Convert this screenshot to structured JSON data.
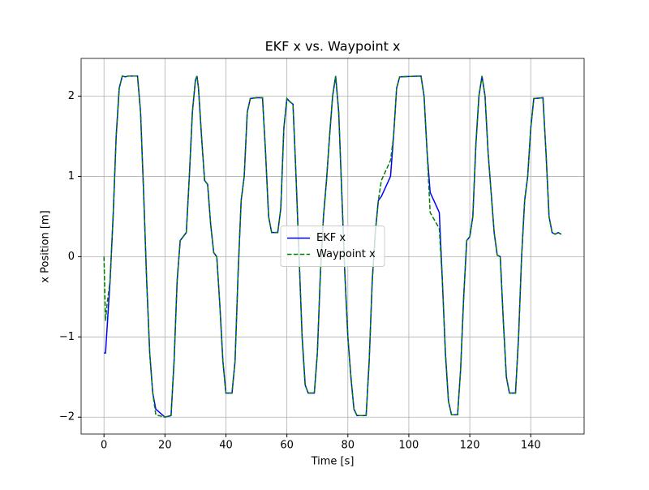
{
  "chart_data": {
    "type": "line",
    "title": "EKF x vs. Waypoint x",
    "x_label": "Time [s]",
    "y_label": "x Position [m]",
    "x": [
      0,
      0.5,
      1,
      2,
      3,
      4,
      5,
      6,
      7,
      8,
      11,
      12,
      13,
      14,
      15,
      16,
      17,
      20,
      22,
      23,
      24,
      25,
      26,
      27,
      28,
      29,
      30,
      30.5,
      31,
      32,
      33,
      34,
      35,
      36,
      37,
      38,
      39,
      40,
      42,
      43,
      44,
      45,
      46,
      47,
      48,
      50,
      52,
      53,
      54,
      55,
      57,
      58,
      59,
      60,
      61,
      62,
      63,
      64,
      65,
      66,
      67,
      69,
      70,
      71,
      72,
      73,
      74,
      75,
      76,
      77,
      78,
      79,
      80,
      81,
      82,
      83,
      86,
      87,
      88,
      89,
      90,
      91,
      94,
      95,
      96,
      97,
      104,
      105,
      106,
      107,
      110,
      111,
      112,
      113,
      114,
      116,
      117,
      118,
      119,
      120,
      121,
      122,
      123,
      124,
      125,
      126,
      127,
      128,
      129,
      130,
      131,
      132,
      133,
      135,
      136,
      137,
      138,
      139,
      140,
      141,
      144,
      145,
      146,
      147,
      148,
      149,
      150
    ],
    "series": [
      {
        "name": "EKF x",
        "color": "#0000ff",
        "dashed": false,
        "values": [
          -1.2,
          -1.2,
          -0.9,
          -0.3,
          0.5,
          1.5,
          2.1,
          2.25,
          2.24,
          2.25,
          2.25,
          1.8,
          0.8,
          -0.3,
          -1.2,
          -1.7,
          -1.9,
          -2.0,
          -1.98,
          -1.3,
          -0.3,
          0.2,
          0.25,
          0.3,
          1.0,
          1.8,
          2.2,
          2.25,
          2.1,
          1.5,
          0.95,
          0.9,
          0.4,
          0.05,
          0.0,
          -0.6,
          -1.3,
          -1.7,
          -1.7,
          -1.3,
          -0.2,
          0.7,
          1.0,
          1.8,
          1.97,
          1.98,
          1.98,
          1.3,
          0.5,
          0.3,
          0.3,
          0.6,
          1.6,
          1.97,
          1.93,
          1.9,
          1.0,
          0.0,
          -1.0,
          -1.6,
          -1.7,
          -1.7,
          -1.2,
          -0.2,
          0.5,
          0.95,
          1.5,
          2.0,
          2.25,
          1.8,
          0.8,
          -0.2,
          -1.0,
          -1.5,
          -1.9,
          -1.98,
          -1.98,
          -1.3,
          -0.3,
          0.3,
          0.7,
          0.75,
          1.0,
          1.5,
          2.1,
          2.24,
          2.25,
          2.0,
          1.3,
          0.8,
          0.55,
          -0.3,
          -1.2,
          -1.8,
          -1.97,
          -1.97,
          -1.4,
          -0.5,
          0.2,
          0.25,
          0.5,
          1.4,
          2.0,
          2.25,
          2.0,
          1.3,
          0.8,
          0.3,
          0.02,
          0.0,
          -0.8,
          -1.5,
          -1.7,
          -1.7,
          -1.0,
          0.0,
          0.7,
          1.0,
          1.6,
          1.97,
          1.98,
          1.3,
          0.5,
          0.3,
          0.28,
          0.3,
          0.28
        ]
      },
      {
        "name": "Waypoint x",
        "color": "#008000",
        "dashed": true,
        "values": [
          0,
          -0.8,
          -0.6,
          -0.3,
          0.5,
          1.5,
          2.1,
          2.25,
          2.24,
          2.25,
          2.25,
          1.8,
          0.8,
          -0.3,
          -1.2,
          -1.7,
          -1.97,
          -2.0,
          -1.98,
          -1.3,
          -0.3,
          0.2,
          0.25,
          0.3,
          1.0,
          1.8,
          2.2,
          2.25,
          2.1,
          1.5,
          0.95,
          0.9,
          0.4,
          0.05,
          0.0,
          -0.6,
          -1.3,
          -1.7,
          -1.7,
          -1.3,
          -0.2,
          0.7,
          1.0,
          1.8,
          1.97,
          1.98,
          1.98,
          1.3,
          0.5,
          0.3,
          0.3,
          0.6,
          1.6,
          1.97,
          1.93,
          1.9,
          1.0,
          0.0,
          -1.0,
          -1.6,
          -1.7,
          -1.7,
          -1.2,
          -0.2,
          0.5,
          0.95,
          1.5,
          2.0,
          2.25,
          1.8,
          0.8,
          -0.2,
          -1.0,
          -1.5,
          -1.9,
          -1.98,
          -1.98,
          -1.3,
          -0.3,
          0.3,
          0.7,
          0.95,
          1.2,
          1.5,
          2.1,
          2.24,
          2.25,
          2.0,
          1.3,
          0.55,
          0.35,
          -0.3,
          -1.2,
          -1.8,
          -1.97,
          -1.97,
          -1.4,
          -0.5,
          0.2,
          0.25,
          0.5,
          1.4,
          2.0,
          2.25,
          2.0,
          1.3,
          0.8,
          0.3,
          0.02,
          0.0,
          -0.8,
          -1.5,
          -1.7,
          -1.7,
          -1.0,
          0.0,
          0.7,
          1.0,
          1.6,
          1.97,
          1.98,
          1.3,
          0.5,
          0.3,
          0.28,
          0.3,
          0.28
        ]
      }
    ],
    "xlim": [
      -7.5,
      157.5
    ],
    "xticks": [
      0,
      20,
      40,
      60,
      80,
      100,
      120,
      140
    ],
    "ylim": [
      -2.21,
      2.47
    ],
    "yticks": [
      {
        "value": -2,
        "label": "−2"
      },
      {
        "value": -1,
        "label": "−1"
      },
      0,
      1,
      2
    ],
    "grid": true,
    "legend": "center"
  }
}
